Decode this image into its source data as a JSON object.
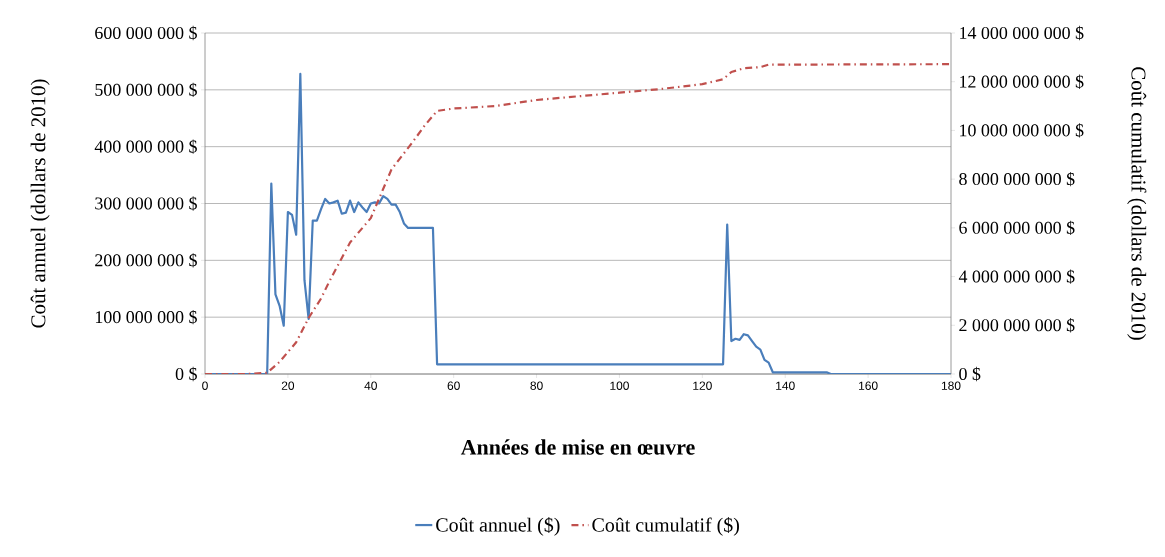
{
  "chart_data": {
    "type": "line",
    "xlabel": "Années de mise en œuvre",
    "ylabel": "Coût annuel (dollars de 2010)",
    "y2label": "Coût cumulatif (dollars de 2010)",
    "xlim": [
      0,
      180
    ],
    "xticks": [
      0,
      20,
      40,
      60,
      80,
      100,
      120,
      140,
      160,
      180
    ],
    "ylim": [
      0,
      600000000
    ],
    "yticks": [
      {
        "value": 0,
        "label": "0 $"
      },
      {
        "value": 100000000,
        "label": "100 000 000 $"
      },
      {
        "value": 200000000,
        "label": "200 000 000 $"
      },
      {
        "value": 300000000,
        "label": "300 000 000 $"
      },
      {
        "value": 400000000,
        "label": "400 000 000 $"
      },
      {
        "value": 500000000,
        "label": "500 000 000 $"
      },
      {
        "value": 600000000,
        "label": "600 000 000 $"
      }
    ],
    "y2lim": [
      0,
      14000000000
    ],
    "y2ticks": [
      {
        "value": 0,
        "label": "0 $"
      },
      {
        "value": 2000000000,
        "label": "2 000 000 000 $"
      },
      {
        "value": 4000000000,
        "label": "4 000 000 000 $"
      },
      {
        "value": 6000000000,
        "label": "6 000 000 000 $"
      },
      {
        "value": 8000000000,
        "label": "8 000 000 000 $"
      },
      {
        "value": 10000000000,
        "label": "10 000 000 000 $"
      },
      {
        "value": 12000000000,
        "label": "12 000 000 000 $"
      },
      {
        "value": 14000000000,
        "label": "14 000 000 000 $"
      }
    ],
    "grid": "y",
    "legend": "bottom",
    "series": [
      {
        "name": "Coût annuel ($)",
        "color": "#4a7ebb",
        "line_style": "solid",
        "axis": "y",
        "x": [
          0,
          15,
          16,
          17,
          18,
          19,
          20,
          21,
          22,
          23,
          24,
          25,
          26,
          27,
          28,
          29,
          30,
          31,
          32,
          33,
          34,
          35,
          36,
          37,
          38,
          39,
          40,
          41,
          42,
          43,
          44,
          45,
          46,
          47,
          48,
          49,
          50,
          55,
          56,
          125,
          126,
          127,
          128,
          129,
          130,
          131,
          132,
          133,
          134,
          135,
          136,
          137,
          150,
          151,
          180
        ],
        "values": [
          0,
          0,
          335000000,
          140000000,
          120000000,
          85000000,
          285000000,
          280000000,
          245000000,
          528000000,
          165000000,
          97000000,
          270000000,
          270000000,
          290000000,
          308000000,
          300000000,
          302000000,
          305000000,
          282000000,
          284000000,
          305000000,
          285000000,
          302000000,
          293000000,
          285000000,
          300000000,
          302000000,
          300000000,
          313000000,
          308000000,
          298000000,
          298000000,
          285000000,
          265000000,
          257000000,
          257000000,
          257000000,
          17000000,
          17000000,
          263000000,
          58000000,
          62000000,
          60000000,
          70000000,
          68000000,
          58000000,
          48000000,
          43000000,
          25000000,
          20000000,
          3000000,
          3000000,
          0,
          0
        ]
      },
      {
        "name": "Coût cumulatif ($)",
        "color": "#c0504d",
        "line_style": "dashdot",
        "axis": "y2",
        "x": [
          0,
          10,
          15,
          16,
          18,
          20,
          22,
          25,
          28,
          30,
          35,
          40,
          45,
          50,
          53,
          56,
          60,
          70,
          80,
          90,
          100,
          110,
          120,
          125,
          127,
          130,
          134,
          136,
          180
        ],
        "values": [
          0,
          0,
          50000000,
          200000000,
          500000000,
          900000000,
          1300000000,
          2300000000,
          3100000000,
          3800000000,
          5400000000,
          6400000000,
          8400000000,
          9500000000,
          10200000000,
          10800000000,
          10900000000,
          11000000000,
          11250000000,
          11400000000,
          11550000000,
          11700000000,
          11900000000,
          12100000000,
          12400000000,
          12550000000,
          12600000000,
          12700000000,
          12720000000
        ]
      }
    ]
  }
}
